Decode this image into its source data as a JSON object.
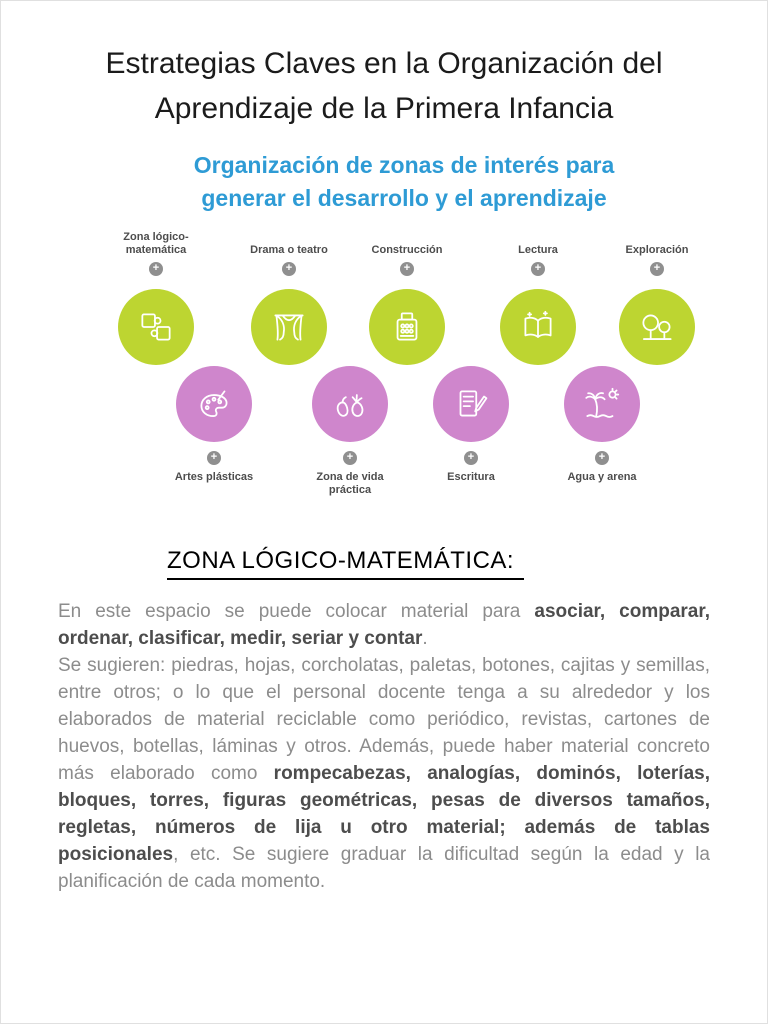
{
  "colors": {
    "accent-blue": "#2e9bd5",
    "circle-green": "#bdd531",
    "circle-pink": "#cf86cc",
    "plus-gray": "#8f8f8f",
    "body-gray": "#8c8c8c",
    "body-bold": "#4d4d4d"
  },
  "header": {
    "title_lines": [
      "Estrategias Claves en la Organización del",
      "Aprendizaje de la Primera Infancia"
    ],
    "subtitle_lines": [
      "Organización de zonas de interés para",
      "generar el desarrollo y el aprendizaje"
    ]
  },
  "infographic": {
    "plus_symbol": "+",
    "top_zones": [
      {
        "label": "Zona lógico-matemática",
        "icon": "puzzle-icon"
      },
      {
        "label": "Drama o teatro",
        "icon": "theater-curtain-icon"
      },
      {
        "label": "Construcción",
        "icon": "building-blocks-icon"
      },
      {
        "label": "Lectura",
        "icon": "open-book-icon"
      },
      {
        "label": "Exploración",
        "icon": "trees-icon"
      }
    ],
    "bottom_zones": [
      {
        "label": "Artes plásticas",
        "icon": "paint-palette-icon"
      },
      {
        "label": "Zona de vida práctica",
        "icon": "vegetables-icon"
      },
      {
        "label": "Escritura",
        "icon": "pencil-notepad-icon"
      },
      {
        "label": "Agua y arena",
        "icon": "palm-beach-icon"
      }
    ]
  },
  "section": {
    "heading": "ZONA LÓGICO-MATEMÁTICA:",
    "paragraphs": [
      {
        "segments": [
          {
            "text": "En este espacio se puede colocar material para ",
            "bold": false
          },
          {
            "text": "asociar, comparar, ordenar, clasificar, medir, seriar y contar",
            "bold": true
          },
          {
            "text": ".",
            "bold": false
          }
        ]
      },
      {
        "segments": [
          {
            "text": "Se sugieren: piedras, hojas, corcholatas, paletas, botones, cajitas y semillas, entre otros; o lo que el personal docente tenga a su alrededor y los elaborados de material reciclable como periódico, revistas, cartones de huevos, botellas, láminas y otros. Además, puede haber material concreto más elaborado como ",
            "bold": false
          },
          {
            "text": "rompecabezas, analogías, dominós, loterías, bloques, torres, figuras geométricas, pesas de diversos tamaños, regletas, números de lija u otro material; además de tablas posicionales",
            "bold": true
          },
          {
            "text": ", etc. Se sugiere graduar la dificultad según la edad y la planificación de cada momento.",
            "bold": false
          }
        ]
      }
    ]
  }
}
